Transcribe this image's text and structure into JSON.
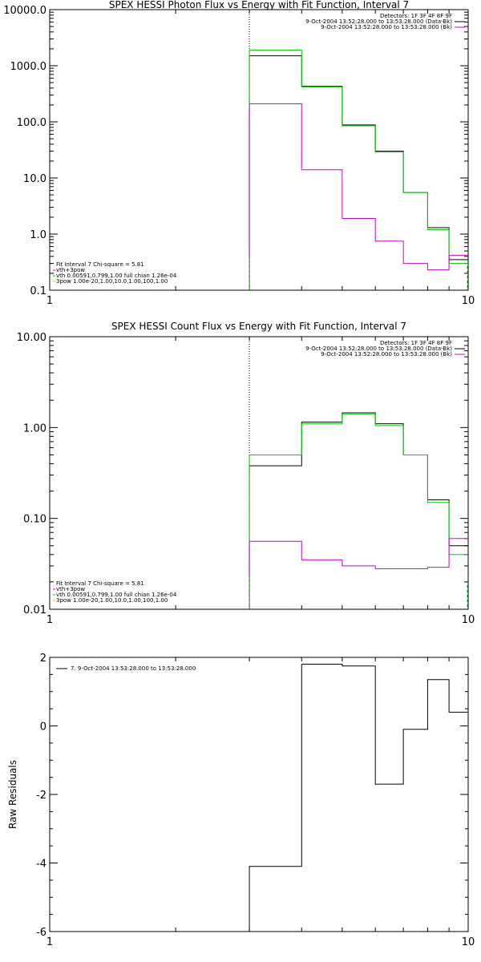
{
  "chart_data": [
    {
      "type": "line",
      "title": "SPEX HESSI Photon Flux vs Energy with Fit Function, Interval 7",
      "xlabel": "",
      "ylabel": "",
      "xscale": "log",
      "yscale": "log",
      "xlim": [
        1,
        10
      ],
      "ylim": [
        0.1,
        10000
      ],
      "x_ticks": [
        "1",
        "10"
      ],
      "y_ticks": [
        "0.1",
        "1.0",
        "10.0",
        "100.0",
        "1000.0",
        "10000.0"
      ],
      "bin_edges": [
        3,
        4,
        5,
        6,
        7,
        8,
        9,
        10
      ],
      "vline_x": 3,
      "legend_top": [
        {
          "text": "Detectors: 1F 3F 4F 8F 9F",
          "color": ""
        },
        {
          "text": "9-Oct-2004 13:52:28.000 to 13:53:28.000 (Data-Bk)",
          "color": "#000000"
        },
        {
          "text": "9-Oct-2004 13:52:28.000 to 13:53:28.000 (Bk)",
          "color": "#cc00cc"
        }
      ],
      "legend_bottom": [
        {
          "text": "Fit Interval 7   Chi-square = 5.81",
          "color": ""
        },
        {
          "text": "vth+3pow",
          "color": "#cc00cc"
        },
        {
          "text": "vth 0.00591,0.799,1.00  full chian 1.26e-04",
          "color": "#00cc00"
        },
        {
          "text": "3pow 1.00e-20,1.00,10.0,1.00,100,1.00",
          "color": "#cccc00"
        }
      ],
      "series": [
        {
          "color": "#000000",
          "values": [
            1500,
            430,
            88,
            30,
            5.5,
            1.3,
            0.35
          ]
        },
        {
          "color": "#00cc00",
          "values": [
            1900,
            420,
            85,
            29,
            5.5,
            1.2,
            0.3
          ]
        },
        {
          "color": "#cc00cc",
          "values": [
            210,
            14,
            1.9,
            0.75,
            0.3,
            0.23,
            0.42
          ]
        }
      ]
    },
    {
      "type": "line",
      "title": "SPEX HESSI Count Flux vs Energy with Fit Function, Interval 7",
      "xlabel": "",
      "ylabel": "",
      "xscale": "log",
      "yscale": "log",
      "xlim": [
        1,
        10
      ],
      "ylim": [
        0.01,
        10
      ],
      "x_ticks": [
        "1",
        "10"
      ],
      "y_ticks": [
        "0.01",
        "0.10",
        "1.00",
        "10.00"
      ],
      "bin_edges": [
        3,
        4,
        5,
        6,
        7,
        8,
        9,
        10
      ],
      "vline_x": 3,
      "legend_top": [
        {
          "text": "Detectors: 1F 3F 4F 8F 9F",
          "color": ""
        },
        {
          "text": "9-Oct-2004 13:52:28.000 to 13:53:28.000 (Data-Bk)",
          "color": "#000000"
        },
        {
          "text": "9-Oct-2004 13:52:28.000 to 13:53:28.000 (Bk)",
          "color": "#cc00cc"
        }
      ],
      "legend_bottom": [
        {
          "text": "Fit Interval 7   Chi-square = 5.81",
          "color": ""
        },
        {
          "text": "vth+3pow",
          "color": "#cc00cc"
        },
        {
          "text": "vth 0.00591,0.799,1.00  full chian 1.26e-04",
          "color": "#00cc00"
        },
        {
          "text": "3pow 1.00e-20,1.00,10.0,1.00,100,1.00",
          "color": "#cccc00"
        }
      ],
      "series": [
        {
          "color": "#000000",
          "values": [
            0.38,
            1.15,
            1.45,
            1.1,
            0.5,
            0.16,
            0.05
          ]
        },
        {
          "color": "#00cc00",
          "values": [
            0.5,
            1.1,
            1.4,
            1.05,
            0.5,
            0.15,
            0.04
          ]
        },
        {
          "color": "#cc00cc",
          "values": [
            0.056,
            0.035,
            0.03,
            0.028,
            0.028,
            0.029,
            0.06
          ]
        }
      ]
    },
    {
      "type": "line",
      "title": "",
      "xlabel": "",
      "ylabel": "Raw Residuals",
      "xscale": "log",
      "yscale": "linear",
      "xlim": [
        1,
        10
      ],
      "ylim": [
        -6,
        2
      ],
      "x_ticks": [
        "1",
        "10"
      ],
      "y_ticks": [
        "-6",
        "-4",
        "-2",
        "0",
        "2"
      ],
      "bin_edges": [
        3,
        4,
        5,
        6,
        7,
        8,
        9,
        10
      ],
      "legend_top": [
        {
          "text": "7.  9-Oct-2004 13:53:28.000 to 13:53:28.000",
          "color": "#000000"
        }
      ],
      "legend_bottom": [],
      "series": [
        {
          "color": "#000000",
          "values": [
            -4.1,
            1.8,
            1.75,
            -1.7,
            -0.1,
            1.35,
            0.4
          ]
        }
      ]
    }
  ]
}
